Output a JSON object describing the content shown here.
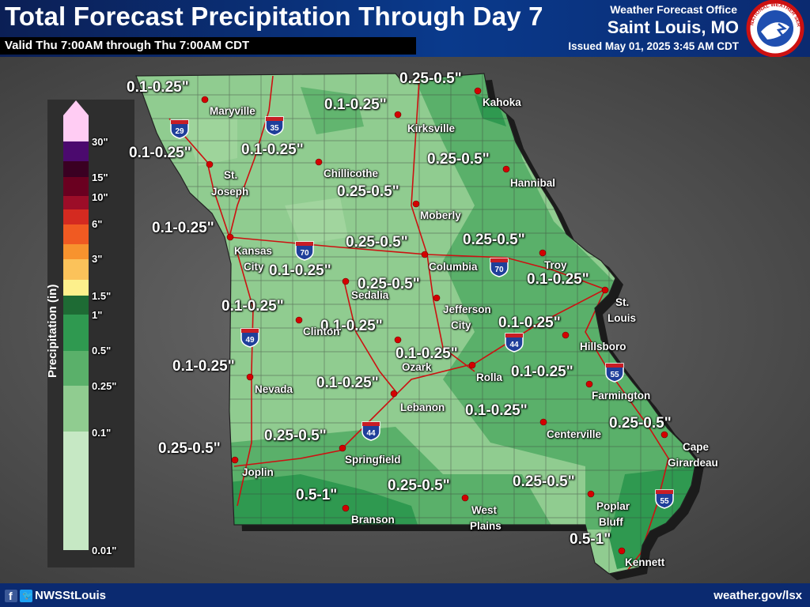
{
  "header": {
    "title": "Total Forecast Precipitation Through Day 7",
    "valid": "Valid Thu 7:00AM through Thu 7:00AM CDT",
    "office_line": "Weather Forecast Office",
    "office_city": "Saint Louis, MO",
    "issued": "Issued May 01, 2025 3:45 AM CDT",
    "logo_text": "NATIONAL WEATHER SERVICE"
  },
  "legend": {
    "axis_label": "Precipitation (in)",
    "ticks": [
      "30\"",
      "15\"",
      "10\"",
      "6\"",
      "3\"",
      "1.5\"",
      "1\"",
      "0.5\"",
      "0.25\"",
      "0.1\"",
      "0.01\""
    ],
    "colors": {
      "c30": "#ffccf3",
      "c15": "#4b0a6e",
      "c12": "#3a0022",
      "c10": "#6a0020",
      "c8": "#9c0d28",
      "c6": "#d42a20",
      "c4": "#f05a22",
      "c3": "#f7932e",
      "c2": "#fbc25a",
      "c15b": "#fdf08c",
      "c1": "#1e6b34",
      "c075": "#2f9950",
      "c05": "#5ab06a",
      "c025": "#90cc90",
      "c01": "#c6e8c4"
    }
  },
  "amounts": [
    "0.1-0.25\"",
    "0.25-0.5\"",
    "0.1-0.25\"",
    "0.1-0.25\"",
    "0.1-0.25\"",
    "0.25-0.5\"",
    "0.25-0.5\"",
    "0.1-0.25\"",
    "0.25-0.5\"",
    "0.25-0.5\"",
    "0.1-0.25\"",
    "0.25-0.5\"",
    "0.1-0.25\"",
    "0.1-0.25\"",
    "0.1-0.25\"",
    "0.1-0.25\"",
    "0.1-0.25\"",
    "0.1-0.25\"",
    "0.1-0.25\"",
    "0.1-0.25\"",
    "0.1-0.25\"",
    "0.25-0.5\"",
    "0.25-0.5\"",
    "0.25-0.5\"",
    "0.5-1\"",
    "0.25-0.5\"",
    "0.25-0.5\"",
    "0.5-1\"",
    "0.1-0.25\""
  ],
  "cities": [
    "Maryville",
    "Kahoka",
    "Kirksville",
    "Chillicothe",
    "Hannibal",
    "St.",
    "Joseph",
    "Moberly",
    "Kansas",
    "City",
    "Troy",
    "Columbia",
    "Sedalia",
    "St.",
    "Louis",
    "Jefferson",
    "City",
    "Clinton",
    "Hillsboro",
    "Ozark",
    "Rolla",
    "Nevada",
    "Farmington",
    "Lebanon",
    "Centerville",
    "Cape",
    "Girardeau",
    "Springfield",
    "Joplin",
    "Poplar",
    "Bluff",
    "West",
    "Plains",
    "Branson",
    "Kennett"
  ],
  "highways": [
    "29",
    "35",
    "70",
    "70",
    "49",
    "44",
    "44",
    "55",
    "55"
  ],
  "footer": {
    "social": "NWSStLouis",
    "website": "weather.gov/lsx"
  }
}
